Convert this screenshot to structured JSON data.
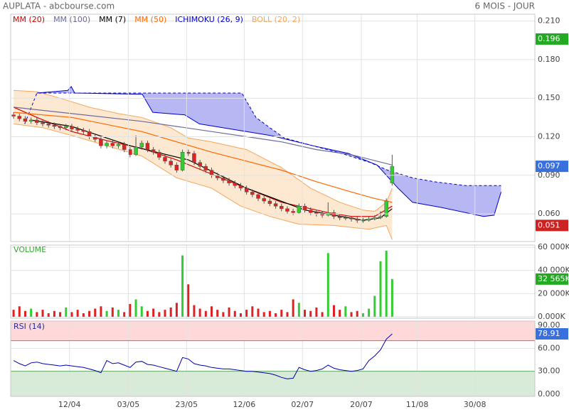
{
  "header": {
    "title": "AUPLATA - abcbourse.com",
    "period": "6 MOIS - JOUR"
  },
  "chart_data": {
    "type": "candlestick",
    "xlim": [
      -0.5,
      89.5
    ],
    "xticks": [
      {
        "value": 9.6,
        "label": "12/04"
      },
      {
        "value": 19.7,
        "label": "03/05"
      },
      {
        "value": 29.7,
        "label": "23/05"
      },
      {
        "value": 39.6,
        "label": "12/06"
      },
      {
        "value": 49.6,
        "label": "02/07"
      },
      {
        "value": 59.7,
        "label": "20/07"
      },
      {
        "value": 69.3,
        "label": "11/08"
      },
      {
        "value": 79.2,
        "label": "30/08"
      }
    ],
    "ylim": [
      0.0385,
      0.2153
    ],
    "yticks": [
      {
        "value": 0.06,
        "label": "0.060"
      },
      {
        "value": 0.09,
        "label": "0.090"
      },
      {
        "value": 0.12,
        "label": "0.120"
      },
      {
        "value": 0.15,
        "label": "0.150"
      },
      {
        "value": 0.18,
        "label": "0.180"
      },
      {
        "value": 0.21,
        "label": "0.210"
      }
    ],
    "grid": true,
    "up_color": "#33cc33",
    "down_color": "#dd2222",
    "ohlc": [
      [
        0.137,
        0.139,
        0.134,
        0.136
      ],
      [
        0.136,
        0.138,
        0.132,
        0.134
      ],
      [
        0.134,
        0.136,
        0.13,
        0.132
      ],
      [
        0.132,
        0.135,
        0.13,
        0.133
      ],
      [
        0.133,
        0.135,
        0.129,
        0.131
      ],
      [
        0.131,
        0.133,
        0.128,
        0.13
      ],
      [
        0.13,
        0.132,
        0.127,
        0.129
      ],
      [
        0.129,
        0.131,
        0.126,
        0.128
      ],
      [
        0.128,
        0.13,
        0.125,
        0.127
      ],
      [
        0.127,
        0.13,
        0.125,
        0.128
      ],
      [
        0.128,
        0.13,
        0.124,
        0.126
      ],
      [
        0.126,
        0.128,
        0.123,
        0.125
      ],
      [
        0.125,
        0.127,
        0.122,
        0.124
      ],
      [
        0.124,
        0.126,
        0.118,
        0.12
      ],
      [
        0.12,
        0.122,
        0.116,
        0.118
      ],
      [
        0.118,
        0.12,
        0.111,
        0.113
      ],
      [
        0.113,
        0.117,
        0.111,
        0.115
      ],
      [
        0.115,
        0.117,
        0.111,
        0.113
      ],
      [
        0.113,
        0.116,
        0.111,
        0.114
      ],
      [
        0.114,
        0.116,
        0.108,
        0.11
      ],
      [
        0.11,
        0.112,
        0.104,
        0.106
      ],
      [
        0.106,
        0.121,
        0.105,
        0.112
      ],
      [
        0.112,
        0.117,
        0.11,
        0.115
      ],
      [
        0.115,
        0.117,
        0.108,
        0.11
      ],
      [
        0.11,
        0.112,
        0.106,
        0.108
      ],
      [
        0.108,
        0.11,
        0.102,
        0.104
      ],
      [
        0.104,
        0.106,
        0.099,
        0.101
      ],
      [
        0.101,
        0.103,
        0.096,
        0.098
      ],
      [
        0.098,
        0.1,
        0.092,
        0.094
      ],
      [
        0.094,
        0.11,
        0.093,
        0.108
      ],
      [
        0.108,
        0.11,
        0.105,
        0.107
      ],
      [
        0.107,
        0.109,
        0.098,
        0.1
      ],
      [
        0.1,
        0.102,
        0.095,
        0.097
      ],
      [
        0.097,
        0.099,
        0.092,
        0.094
      ],
      [
        0.094,
        0.096,
        0.088,
        0.09
      ],
      [
        0.09,
        0.092,
        0.086,
        0.088
      ],
      [
        0.088,
        0.09,
        0.084,
        0.086
      ],
      [
        0.086,
        0.088,
        0.082,
        0.084
      ],
      [
        0.084,
        0.086,
        0.08,
        0.082
      ],
      [
        0.082,
        0.084,
        0.078,
        0.08
      ],
      [
        0.08,
        0.082,
        0.075,
        0.077
      ],
      [
        0.077,
        0.079,
        0.073,
        0.075
      ],
      [
        0.075,
        0.077,
        0.07,
        0.072
      ],
      [
        0.072,
        0.074,
        0.068,
        0.07
      ],
      [
        0.07,
        0.072,
        0.066,
        0.068
      ],
      [
        0.068,
        0.07,
        0.064,
        0.066
      ],
      [
        0.066,
        0.068,
        0.062,
        0.064
      ],
      [
        0.064,
        0.066,
        0.06,
        0.062
      ],
      [
        0.062,
        0.064,
        0.059,
        0.061
      ],
      [
        0.061,
        0.068,
        0.06,
        0.066
      ],
      [
        0.066,
        0.068,
        0.061,
        0.063
      ],
      [
        0.063,
        0.065,
        0.059,
        0.061
      ],
      [
        0.061,
        0.063,
        0.058,
        0.06
      ],
      [
        0.06,
        0.062,
        0.057,
        0.059
      ],
      [
        0.059,
        0.069,
        0.058,
        0.061
      ],
      [
        0.061,
        0.063,
        0.056,
        0.058
      ],
      [
        0.058,
        0.06,
        0.055,
        0.057
      ],
      [
        0.057,
        0.059,
        0.055,
        0.057
      ],
      [
        0.057,
        0.058,
        0.054,
        0.056
      ],
      [
        0.056,
        0.058,
        0.053,
        0.055
      ],
      [
        0.055,
        0.057,
        0.053,
        0.055
      ],
      [
        0.055,
        0.058,
        0.054,
        0.056
      ],
      [
        0.056,
        0.059,
        0.055,
        0.057
      ],
      [
        0.057,
        0.062,
        0.056,
        0.058
      ],
      [
        0.058,
        0.072,
        0.057,
        0.07
      ],
      [
        0.084,
        0.106,
        0.082,
        0.097
      ]
    ],
    "overlays": [
      {
        "name": "MM (20)",
        "color": "#d40000",
        "x": [
          0,
          4,
          10,
          16,
          22,
          28,
          34,
          40,
          46,
          49,
          54,
          58,
          62,
          65
        ],
        "values": [
          0.143,
          0.135,
          0.124,
          0.117,
          0.111,
          0.102,
          0.091,
          0.08,
          0.069,
          0.066,
          0.061,
          0.058,
          0.058,
          0.066
        ]
      },
      {
        "name": "MM (100)",
        "color": "#6b6b9b",
        "x": [
          0,
          10,
          22,
          34,
          46,
          52,
          58,
          65
        ],
        "values": [
          0.143,
          0.138,
          0.132,
          0.124,
          0.116,
          0.11,
          0.106,
          0.098
        ]
      },
      {
        "name": "MM (7)",
        "color": "#000000",
        "x": [
          3,
          10,
          20,
          30,
          40,
          50,
          55,
          60,
          63,
          65
        ],
        "values": [
          0.133,
          0.128,
          0.113,
          0.102,
          0.08,
          0.063,
          0.059,
          0.055,
          0.057,
          0.064
        ]
      },
      {
        "name": "MM (50)",
        "color": "#ff6600",
        "x": [
          0,
          10,
          22,
          34,
          46,
          52,
          58,
          62,
          65
        ],
        "values": [
          0.139,
          0.135,
          0.124,
          0.108,
          0.094,
          0.085,
          0.077,
          0.072,
          0.069
        ]
      }
    ],
    "ichimoku": {
      "name": "ICHIMOKU (26, 9)",
      "color": "#0000cc",
      "fill": "#9999ee",
      "span_a": {
        "x": [
          1.9,
          4,
          39.2,
          41.6,
          44,
          46.5,
          51.4,
          56.3,
          61.2,
          64.2,
          68.5,
          72.2,
          77.6,
          83.7
        ],
        "values": [
          0.13,
          0.154,
          0.154,
          0.135,
          0.127,
          0.119,
          0.113,
          0.107,
          0.1,
          0.094,
          0.088,
          0.085,
          0.082,
          0.082
        ]
      },
      "span_b": {
        "x": [
          4,
          9.3,
          9.9,
          10.5,
          22.1,
          23.9,
          29.4,
          31.9,
          44.1,
          51.4,
          57.5,
          62.4,
          66,
          68.5,
          73.4,
          80.7,
          82.5,
          83.7
        ],
        "values": [
          0.154,
          0.156,
          0.159,
          0.154,
          0.153,
          0.139,
          0.137,
          0.13,
          0.121,
          0.113,
          0.107,
          0.098,
          0.08,
          0.069,
          0.065,
          0.058,
          0.059,
          0.077
        ]
      }
    },
    "bollinger": {
      "name": "BOLL (20, 2)",
      "color": "#f5a55a",
      "fill": "#fde3c6",
      "upper": {
        "x": [
          0,
          4,
          8,
          13,
          18,
          22,
          27,
          30,
          34,
          40,
          46,
          51,
          56,
          60,
          62,
          64,
          65
        ],
        "values": [
          0.156,
          0.155,
          0.15,
          0.143,
          0.138,
          0.135,
          0.127,
          0.119,
          0.116,
          0.11,
          0.096,
          0.08,
          0.069,
          0.063,
          0.062,
          0.069,
          0.08
        ]
      },
      "lower": {
        "x": [
          0,
          5,
          10,
          16,
          22,
          28,
          34,
          39,
          44,
          49,
          55,
          61,
          64,
          65
        ],
        "values": [
          0.13,
          0.127,
          0.121,
          0.113,
          0.105,
          0.088,
          0.08,
          0.066,
          0.058,
          0.052,
          0.051,
          0.048,
          0.051,
          0.04
        ]
      }
    },
    "badges": [
      {
        "value": 0.196,
        "color": "#22aa22"
      },
      {
        "value": 0.097,
        "color": "#3a6fe0"
      },
      {
        "value": 0.051,
        "color": "#cc2222"
      }
    ],
    "volume": {
      "title": "VOLUME",
      "ylim": [
        -1290,
        61935
      ],
      "yticks": [
        {
          "value": 0,
          "label": "0.000K"
        },
        {
          "value": 20000,
          "label": "20 000K"
        },
        {
          "value": 40000,
          "label": "40 000K"
        },
        {
          "value": 60000,
          "label": "60 000K"
        }
      ],
      "values": [
        6000,
        9000,
        5000,
        7000,
        4000,
        6000,
        3000,
        5000,
        4000,
        8000,
        4000,
        6000,
        3000,
        5000,
        7000,
        9000,
        5000,
        8000,
        6000,
        4000,
        11000,
        15000,
        9000,
        5000,
        7000,
        4000,
        6000,
        8000,
        12000,
        53000,
        28000,
        10000,
        7000,
        5000,
        9000,
        6000,
        4000,
        8000,
        5000,
        3000,
        6000,
        9000,
        7000,
        4000,
        5000,
        3000,
        6000,
        4000,
        15000,
        12000,
        6000,
        5000,
        8000,
        4000,
        55000,
        10000,
        6000,
        9000,
        4000,
        5000,
        3000,
        7000,
        18000,
        48000,
        57000,
        32565
      ],
      "badge": {
        "value": 32565,
        "label": "32 565K",
        "color": "#22aa22"
      }
    },
    "rsi": {
      "title": "RSI (14)",
      "color": "#0000aa",
      "ylim": [
        -2.8,
        95.6
      ],
      "yticks": [
        {
          "value": 0,
          "label": "0.000"
        },
        {
          "value": 30,
          "label": "30.00"
        },
        {
          "value": 60,
          "label": "60.00"
        },
        {
          "value": 90,
          "label": "90.00"
        }
      ],
      "zones": [
        30,
        70
      ],
      "values": [
        44,
        40,
        37,
        41,
        42,
        40,
        39,
        38,
        37,
        38,
        37,
        36,
        35,
        33,
        31,
        28,
        44,
        40,
        41,
        38,
        35,
        42,
        43,
        39,
        38,
        36,
        34,
        32,
        30,
        48,
        46,
        40,
        38,
        37,
        35,
        34,
        33,
        33,
        32,
        31,
        30,
        30,
        29,
        28,
        27,
        25,
        22,
        20,
        21,
        35,
        32,
        30,
        31,
        33,
        38,
        34,
        32,
        31,
        30,
        31,
        33,
        44,
        50,
        58,
        72,
        78.91
      ],
      "badge": {
        "value": 78.91,
        "color": "#3a6fe0"
      }
    }
  }
}
